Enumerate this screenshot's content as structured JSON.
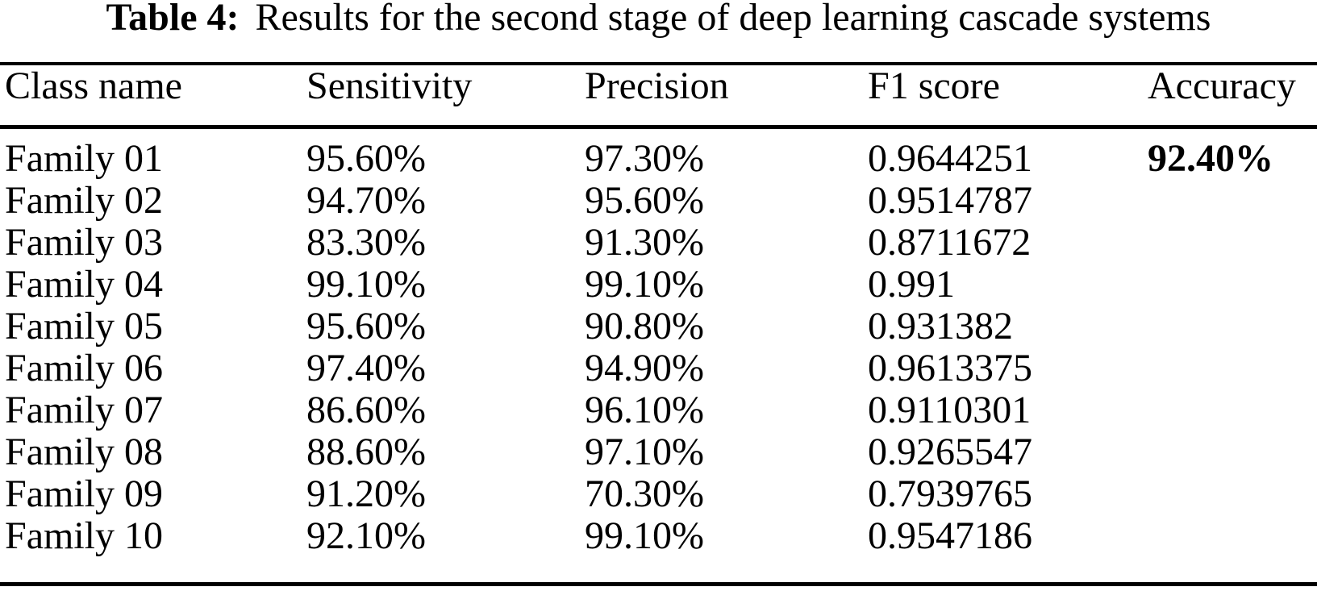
{
  "caption": {
    "label": "Table 4:",
    "text": "Results for the second stage of deep learning cascade systems"
  },
  "columns": [
    "Class name",
    "Sensitivity",
    "Precision",
    "F1 score",
    "Accuracy"
  ],
  "rows": [
    {
      "class_name": "Family 01",
      "sensitivity": "95.60%",
      "precision": "97.30%",
      "f1_score": "0.9644251",
      "accuracy": "92.40%"
    },
    {
      "class_name": "Family 02",
      "sensitivity": "94.70%",
      "precision": "95.60%",
      "f1_score": "0.9514787",
      "accuracy": ""
    },
    {
      "class_name": "Family 03",
      "sensitivity": "83.30%",
      "precision": "91.30%",
      "f1_score": "0.8711672",
      "accuracy": ""
    },
    {
      "class_name": "Family 04",
      "sensitivity": "99.10%",
      "precision": "99.10%",
      "f1_score": "0.991",
      "accuracy": ""
    },
    {
      "class_name": "Family 05",
      "sensitivity": "95.60%",
      "precision": "90.80%",
      "f1_score": "0.931382",
      "accuracy": ""
    },
    {
      "class_name": "Family 06",
      "sensitivity": "97.40%",
      "precision": "94.90%",
      "f1_score": "0.9613375",
      "accuracy": ""
    },
    {
      "class_name": "Family 07",
      "sensitivity": "86.60%",
      "precision": "96.10%",
      "f1_score": "0.9110301",
      "accuracy": ""
    },
    {
      "class_name": "Family 08",
      "sensitivity": "88.60%",
      "precision": "97.10%",
      "f1_score": "0.9265547",
      "accuracy": ""
    },
    {
      "class_name": "Family 09",
      "sensitivity": "91.20%",
      "precision": "70.30%",
      "f1_score": "0.7939765",
      "accuracy": ""
    },
    {
      "class_name": "Family 10",
      "sensitivity": "92.10%",
      "precision": "99.10%",
      "f1_score": "0.9547186",
      "accuracy": ""
    }
  ],
  "colors": {
    "text": "#000000",
    "background": "#ffffff",
    "rule": "#000000"
  }
}
